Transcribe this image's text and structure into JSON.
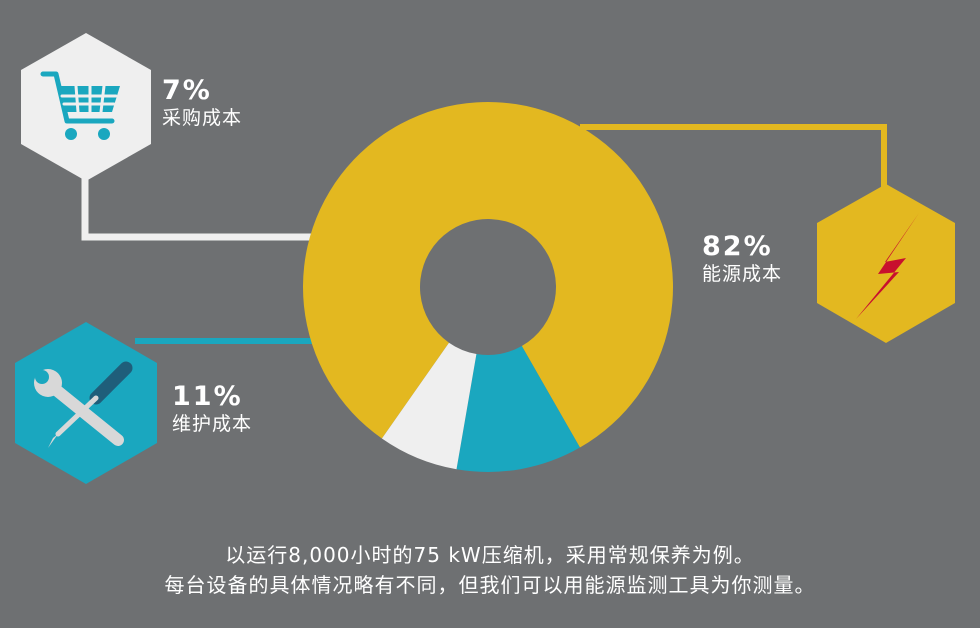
{
  "chart_data": {
    "type": "pie",
    "donut": true,
    "slices": [
      {
        "label": "能源成本",
        "value": 82,
        "display": "82%",
        "color": "#e3b820",
        "icon": "lightning-bolt-icon"
      },
      {
        "label": "维护成本",
        "value": 11,
        "display": "11%",
        "color": "#1aa7bf",
        "icon": "wrench-screwdriver-icon"
      },
      {
        "label": "采购成本",
        "value": 7,
        "display": "7%",
        "color": "#efefef",
        "icon": "shopping-cart-icon"
      }
    ]
  },
  "caption": {
    "line1": "以运行8,000小时的75 kW压缩机，采用常规保养为例。",
    "line2": "每台设备的具体情况略有不同，但我们可以用能源监测工具为你测量。"
  },
  "colors": {
    "background": "#6e7072",
    "energy": "#e3b820",
    "maintenance": "#1aa7bf",
    "purchase": "#efefef",
    "bolt": "#c8102e"
  }
}
